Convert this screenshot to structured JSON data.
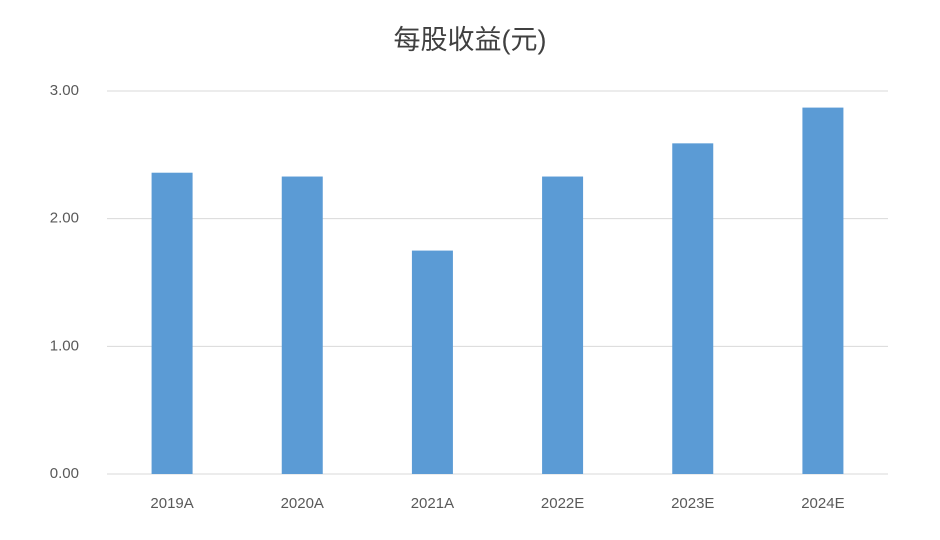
{
  "chart_data": {
    "type": "bar",
    "title": "每股收益(元)",
    "categories": [
      "2019A",
      "2020A",
      "2021A",
      "2022E",
      "2023E",
      "2024E"
    ],
    "values": [
      2.36,
      2.33,
      1.75,
      2.33,
      2.59,
      2.87
    ],
    "color": "#5b9bd5",
    "ylim": [
      0,
      3
    ],
    "yticks": [
      {
        "value": 0,
        "label": "0.00"
      },
      {
        "value": 1,
        "label": "1.00"
      },
      {
        "value": 2,
        "label": "2.00"
      },
      {
        "value": 3,
        "label": "3.00"
      }
    ],
    "grid": true
  }
}
